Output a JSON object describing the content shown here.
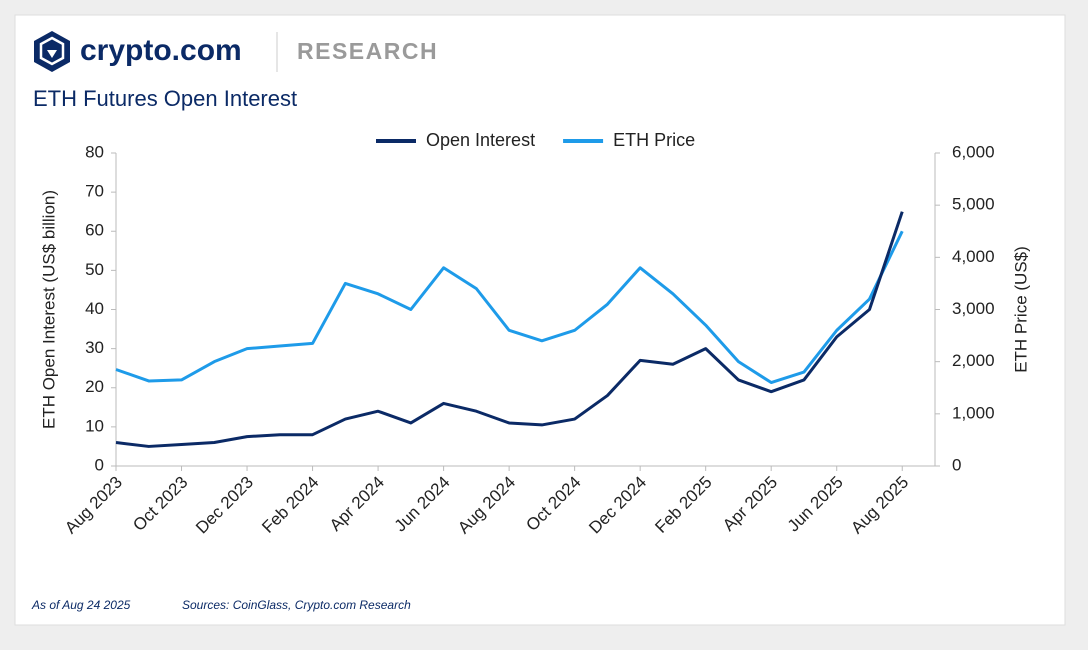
{
  "brand": {
    "name": "crypto.com",
    "section": "RESEARCH"
  },
  "footer": {
    "as_of": "As of Aug 24 2025",
    "sources": "Sources: CoinGlass, Crypto.com Research"
  },
  "chart_data": {
    "type": "line",
    "title": "ETH Futures Open Interest",
    "ylabel": "ETH Open Interest (US$ billion)",
    "y2label": "ETH Price (US$)",
    "x": [
      "2023-08",
      "2023-09",
      "2023-10",
      "2023-11",
      "2023-12",
      "2024-01",
      "2024-02",
      "2024-03",
      "2024-04",
      "2024-05",
      "2024-06",
      "2024-07",
      "2024-08",
      "2024-09",
      "2024-10",
      "2024-11",
      "2024-12",
      "2025-01",
      "2025-02",
      "2025-03",
      "2025-04",
      "2025-05",
      "2025-06",
      "2025-07",
      "2025-08"
    ],
    "series": [
      {
        "name": "Open Interest",
        "color": "#0b2a66",
        "axis": "y",
        "values": [
          6,
          5,
          5.5,
          6,
          7.5,
          8,
          8,
          12,
          14,
          11,
          16,
          14,
          11,
          10.5,
          12,
          18,
          27,
          26,
          30,
          22,
          19,
          22,
          33,
          40,
          65
        ]
      },
      {
        "name": "ETH Price",
        "color": "#1e9be9",
        "axis": "y2",
        "values": [
          1850,
          1630,
          1650,
          2000,
          2250,
          2300,
          2350,
          3500,
          3300,
          3000,
          3800,
          3400,
          2600,
          2400,
          2600,
          3100,
          3800,
          3300,
          2700,
          2000,
          1600,
          1800,
          2600,
          3200,
          4500
        ]
      }
    ],
    "xlim": [
      "2023-08",
      "2025-09"
    ],
    "xticks": [
      {
        "value": "2023-08",
        "label": "Aug 2023"
      },
      {
        "value": "2023-10",
        "label": "Oct 2023"
      },
      {
        "value": "2023-12",
        "label": "Dec 2023"
      },
      {
        "value": "2024-02",
        "label": "Feb 2024"
      },
      {
        "value": "2024-04",
        "label": "Apr 2024"
      },
      {
        "value": "2024-06",
        "label": "Jun 2024"
      },
      {
        "value": "2024-08",
        "label": "Aug 2024"
      },
      {
        "value": "2024-10",
        "label": "Oct 2024"
      },
      {
        "value": "2024-12",
        "label": "Dec 2024"
      },
      {
        "value": "2025-02",
        "label": "Feb 2025"
      },
      {
        "value": "2025-04",
        "label": "Apr 2025"
      },
      {
        "value": "2025-06",
        "label": "Jun 2025"
      },
      {
        "value": "2025-08",
        "label": "Aug 2025"
      }
    ],
    "ylim": [
      0,
      80
    ],
    "yticks": [
      0,
      10,
      20,
      30,
      40,
      50,
      60,
      70,
      80
    ],
    "y2lim": [
      0,
      6000
    ],
    "y2ticks": [
      0,
      {
        "value": 1000,
        "label": "1,000"
      },
      {
        "value": 2000,
        "label": "2,000"
      },
      {
        "value": 3000,
        "label": "3,000"
      },
      {
        "value": 4000,
        "label": "4,000"
      },
      {
        "value": 5000,
        "label": "5,000"
      },
      {
        "value": 6000,
        "label": "6,000"
      }
    ],
    "legend": "top",
    "grid": false
  }
}
